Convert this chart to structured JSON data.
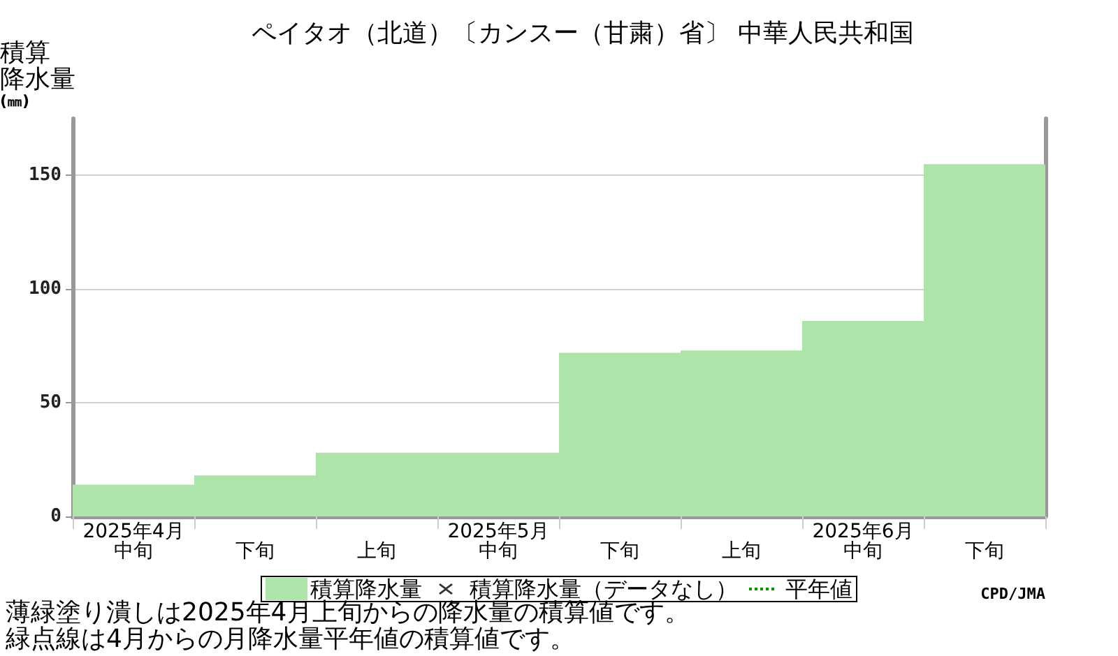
{
  "chart_data": {
    "type": "bar",
    "title": "ペイタオ（北道）〔カンスー（甘粛）省〕 中華人民共和国",
    "ylabel": "積算降水量(㎜)",
    "categories": [
      "2025年4月中旬",
      "下旬",
      "上旬",
      "2025年5月中旬",
      "下旬",
      "上旬",
      "2025年6月中旬",
      "下旬"
    ],
    "series": [
      {
        "name": "積算降水量",
        "color": "#ace4aa",
        "values": [
          14,
          18,
          28,
          28,
          72,
          73,
          86,
          155
        ]
      },
      {
        "name": "積算降水量（データなし）",
        "type": "scatter",
        "marker": "cross",
        "color": "#000000",
        "values": [
          null,
          null,
          null,
          null,
          null,
          null,
          null,
          null
        ]
      },
      {
        "name": "平年値",
        "type": "line",
        "line_style": "dotted",
        "color": "#009900",
        "values": [
          null,
          null,
          null,
          null,
          null,
          null,
          null,
          null
        ]
      }
    ],
    "ylim": [
      0,
      175
    ],
    "yticks": [
      0,
      50,
      100,
      150
    ],
    "grid": "y",
    "legend": "bottom",
    "annotations": [
      "CPD/JMA",
      "薄緑塗り潰しは2025年4月上旬からの降水量の積算値です。",
      "緑点線は4月からの月降水量平年値の積算値です。"
    ]
  }
}
